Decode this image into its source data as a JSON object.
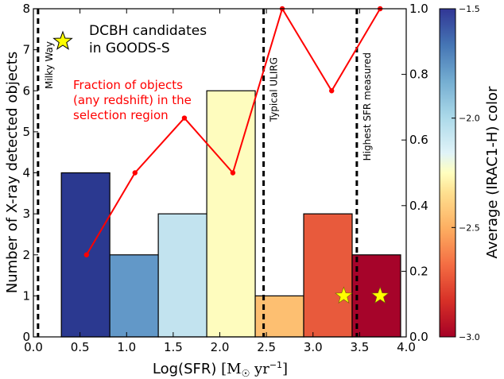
{
  "chart_data": {
    "type": "bar",
    "xlabel_main": "Log(SFR) ",
    "xlabel_unit_base": "[M",
    "xlabel_unit_sun": "☉",
    "xlabel_unit_yr": " yr",
    "xlabel_unit_exp": "−1",
    "xlabel_unit_close": "]",
    "ylabel": "Number of X-ray detected objects",
    "y2label": "",
    "colorbar_label": "Average (IRAC1-H) color",
    "xlim": [
      0,
      4
    ],
    "ylim": [
      0,
      8
    ],
    "y2lim": [
      0,
      1
    ],
    "colorbar_lim": [
      -3.0,
      -1.5
    ],
    "x_ticks": [
      "0.0",
      "0.5",
      "1.0",
      "1.5",
      "2.0",
      "2.5",
      "3.0",
      "3.5",
      "4.0"
    ],
    "y_ticks": [
      "0",
      "1",
      "2",
      "3",
      "4",
      "5",
      "6",
      "7",
      "8"
    ],
    "y2_ticks": [
      "0.0",
      "0.2",
      "0.4",
      "0.6",
      "0.8",
      "1.0"
    ],
    "colorbar_ticks": [
      "−1.5",
      "−2.0",
      "−2.5",
      "−3.0"
    ],
    "histogram": [
      {
        "x0": 0.3,
        "x1": 0.82,
        "count": 4,
        "color": "#2b3990"
      },
      {
        "x0": 0.82,
        "x1": 1.34,
        "count": 2,
        "color": "#6298c8"
      },
      {
        "x0": 1.34,
        "x1": 1.86,
        "count": 3,
        "color": "#c2e3ef"
      },
      {
        "x0": 1.86,
        "x1": 2.38,
        "count": 6,
        "color": "#fefcbe"
      },
      {
        "x0": 2.38,
        "x1": 2.9,
        "count": 1,
        "color": "#fdbf71"
      },
      {
        "x0": 2.9,
        "x1": 3.42,
        "count": 3,
        "color": "#e85a3c"
      },
      {
        "x0": 3.42,
        "x1": 3.94,
        "count": 2,
        "color": "#a6042a"
      }
    ],
    "fraction_series": {
      "label": "Fraction of objects (any redshift) in the selection region",
      "label_lines": [
        "Fraction of objects",
        "(any redshift) in the",
        "selection region"
      ],
      "color": "#ff0000",
      "x": [
        0.57,
        1.09,
        1.62,
        2.14,
        2.67,
        3.2,
        3.72
      ],
      "y": [
        0.25,
        0.5,
        0.667,
        0.5,
        1.0,
        0.75,
        1.0
      ]
    },
    "dcbh_candidates": {
      "label_lines": [
        "DCBH candidates",
        "in GOODS-S"
      ],
      "color": "#ffff00",
      "points": [
        {
          "x": 3.33,
          "y": 1.0
        },
        {
          "x": 3.72,
          "y": 1.0
        }
      ]
    },
    "vlines": [
      {
        "x": 0.05,
        "label": "Milky Way"
      },
      {
        "x": 2.47,
        "label": "Typical ULIRG"
      },
      {
        "x": 3.47,
        "label": "Highest SFR measured"
      }
    ]
  }
}
